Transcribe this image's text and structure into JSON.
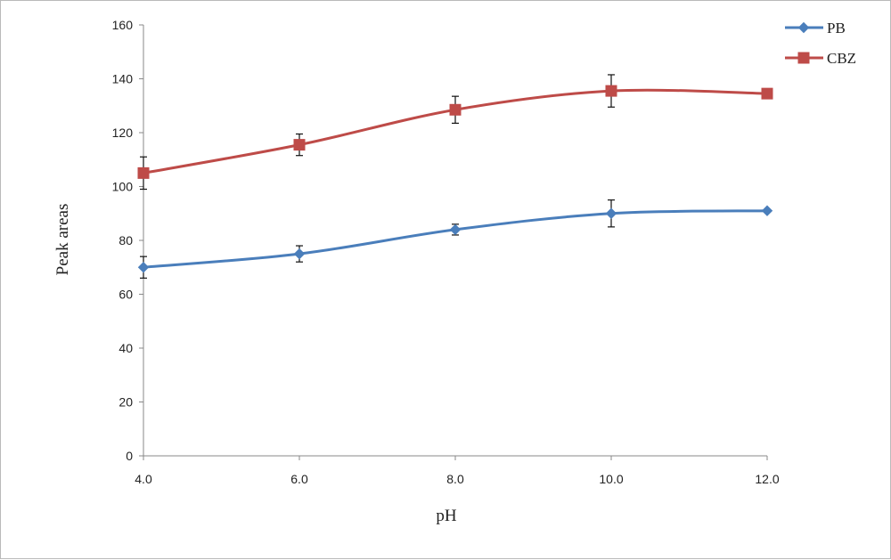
{
  "chart_data": {
    "type": "line",
    "xlabel": "pH",
    "ylabel": "Peak areas",
    "x": [
      "4.0",
      "6.0",
      "8.0",
      "10.0",
      "12.0"
    ],
    "xlim": [
      4,
      12
    ],
    "ylim": [
      0,
      160
    ],
    "yticks": [
      "0",
      "20",
      "40",
      "60",
      "80",
      "100",
      "120",
      "140",
      "160"
    ],
    "grid": false,
    "legend": "top-right",
    "series": [
      {
        "name": "PB",
        "color": "#4a7ebb",
        "marker": "diamond",
        "x": [
          4,
          6,
          8,
          10,
          12
        ],
        "values": [
          70,
          75,
          84,
          90,
          91
        ],
        "error": [
          4,
          3,
          2,
          5,
          0
        ]
      },
      {
        "name": "CBZ",
        "color": "#be4b48",
        "marker": "square",
        "x": [
          4,
          6,
          8,
          10,
          12
        ],
        "values": [
          105,
          115.5,
          128.5,
          135.5,
          134.5
        ],
        "error": [
          6,
          4,
          5,
          6,
          0
        ]
      }
    ]
  }
}
